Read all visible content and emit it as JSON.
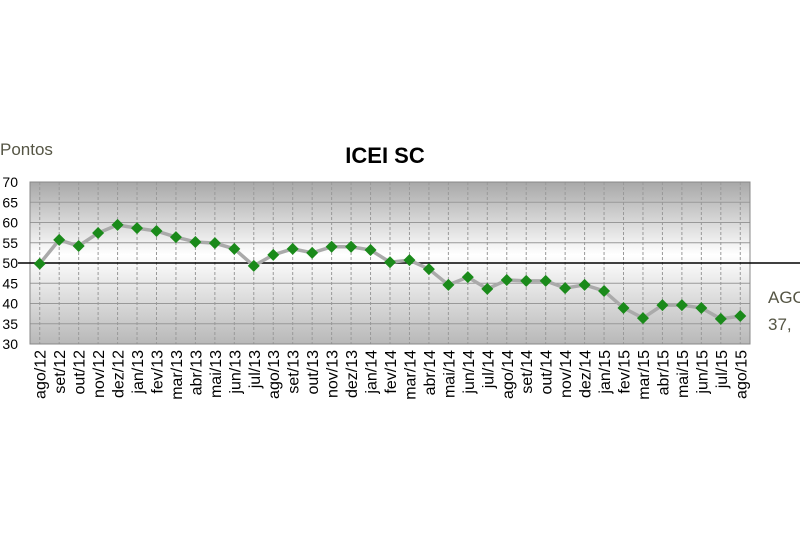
{
  "chart_data": {
    "type": "line",
    "title": "ICEI SC",
    "y_label": "Pontos",
    "categories": [
      "ago/12",
      "set/12",
      "out/12",
      "nov/12",
      "dez/12",
      "jan/13",
      "fev/13",
      "mar/13",
      "abr/13",
      "mai/13",
      "jun/13",
      "jul/13",
      "ago/13",
      "set/13",
      "out/13",
      "nov/13",
      "dez/13",
      "jan/14",
      "fev/14",
      "mar/14",
      "abr/14",
      "mai/14",
      "jun/14",
      "jul/14",
      "ago/14",
      "set/14",
      "out/14",
      "nov/14",
      "dez/14",
      "jan/15",
      "fev/15",
      "mar/15",
      "abr/15",
      "mai/15",
      "jun/15",
      "jul/15",
      "ago/15"
    ],
    "series": [
      {
        "name": "ICEI SC",
        "color": "#aaaaaa",
        "marker_color": "#1a8a1a",
        "values": [
          49.8,
          55.7,
          54.2,
          57.4,
          59.4,
          58.6,
          57.9,
          56.4,
          55.2,
          54.9,
          53.5,
          49.3,
          52,
          53.5,
          52.5,
          54,
          54,
          53.2,
          50.2,
          50.7,
          48.5,
          44.6,
          46.5,
          43.6,
          45.8,
          45.6,
          45.6,
          43.8,
          44.6,
          43.1,
          38.9,
          36.4,
          39.6,
          39.6,
          38.9,
          36.2,
          36.9
        ]
      }
    ],
    "ylim": [
      30,
      70
    ],
    "yticks": [
      30,
      35,
      40,
      45,
      50,
      55,
      60,
      65,
      70
    ],
    "grid": true,
    "reference_line": 50,
    "annotation": [
      "AGO",
      "37,"
    ]
  }
}
